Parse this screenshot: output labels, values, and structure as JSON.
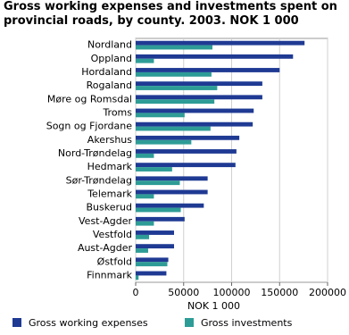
{
  "chart_data": {
    "type": "hbar",
    "title": "Gross working expenses and investments spent on provincial roads, by county. 2003. NOK 1 000",
    "xlabel": "NOK 1 000",
    "categories": [
      "Nordland",
      "Oppland",
      "Hordaland",
      "Rogaland",
      "Møre og Romsdal",
      "Troms",
      "Sogn og Fjordane",
      "Akershus",
      "Nord-Trøndelag",
      "Hedmark",
      "Sør-Trøndelag",
      "Telemark",
      "Buskerud",
      "Vest-Agder",
      "Vestfold",
      "Aust-Agder",
      "Østfold",
      "Finnmark"
    ],
    "series": [
      {
        "name": "Gross working expenses",
        "color": "#1f3a93",
        "values": [
          176000,
          164000,
          150000,
          132000,
          132000,
          123000,
          122000,
          108000,
          105000,
          104000,
          75000,
          75000,
          71000,
          51000,
          40000,
          40000,
          34000,
          32000
        ]
      },
      {
        "name": "Gross investments",
        "color": "#2e9c96",
        "values": [
          80000,
          19000,
          79000,
          85000,
          82000,
          51000,
          78000,
          58000,
          19000,
          38000,
          46000,
          19000,
          47000,
          19000,
          14000,
          13000,
          33000,
          3000
        ]
      }
    ],
    "xlim": [
      0,
      200000
    ],
    "xticks": [
      0,
      50000,
      100000,
      150000,
      200000
    ],
    "grid": true
  }
}
